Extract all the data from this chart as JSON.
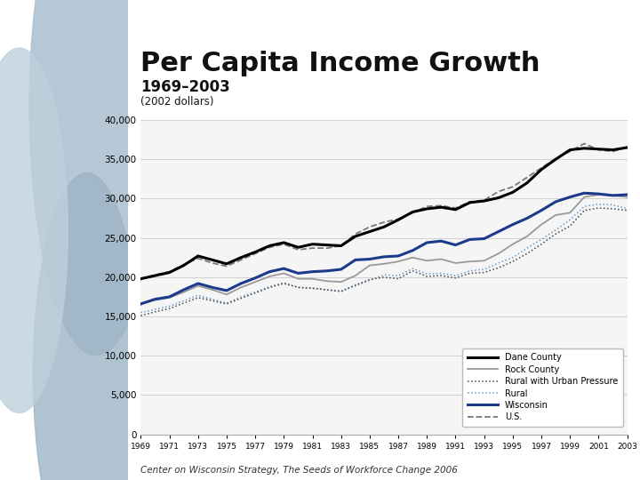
{
  "title": "Per Capita Income Growth",
  "subtitle": "1969–2003",
  "subtitle2": "(2002 dollars)",
  "footer": "Center on Wisconsin Strategy, The Seeds of Workforce Change 2006",
  "years": [
    1969,
    1970,
    1971,
    1972,
    1973,
    1974,
    1975,
    1976,
    1977,
    1978,
    1979,
    1980,
    1981,
    1982,
    1983,
    1984,
    1985,
    1986,
    1987,
    1988,
    1989,
    1990,
    1991,
    1992,
    1993,
    1994,
    1995,
    1996,
    1997,
    1998,
    1999,
    2000,
    2001,
    2002,
    2003
  ],
  "dane_county": [
    19800,
    20200,
    20600,
    21500,
    22700,
    22200,
    21700,
    22500,
    23200,
    24000,
    24400,
    23800,
    24200,
    24100,
    24000,
    25200,
    25800,
    26400,
    27300,
    28300,
    28700,
    28900,
    28600,
    29500,
    29700,
    30100,
    30800,
    32000,
    33700,
    35000,
    36200,
    36400,
    36300,
    36200,
    36500
  ],
  "rock_county": [
    16700,
    17100,
    17400,
    18100,
    18900,
    18400,
    17800,
    18700,
    19400,
    20100,
    20500,
    19800,
    19800,
    19500,
    19400,
    20200,
    21500,
    21700,
    22000,
    22500,
    22100,
    22300,
    21800,
    22000,
    22100,
    23000,
    24200,
    25200,
    26700,
    27900,
    28200,
    30200,
    30500,
    30400,
    30200
  ],
  "rural_urban": [
    15100,
    15600,
    16000,
    16700,
    17400,
    17000,
    16600,
    17300,
    18000,
    18700,
    19200,
    18700,
    18600,
    18400,
    18200,
    19000,
    19700,
    20000,
    19800,
    20800,
    20100,
    20200,
    19900,
    20500,
    20600,
    21200,
    22000,
    23000,
    24200,
    25500,
    26500,
    28500,
    28800,
    28700,
    28500
  ],
  "rural": [
    15500,
    15900,
    16300,
    17000,
    17700,
    17200,
    16700,
    17500,
    18100,
    18800,
    19300,
    18700,
    18600,
    18400,
    18200,
    18900,
    19600,
    20300,
    20200,
    21100,
    20400,
    20500,
    20200,
    20800,
    21000,
    21800,
    22500,
    23700,
    24800,
    26000,
    27300,
    29000,
    29300,
    29200,
    28700
  ],
  "wisconsin": [
    16600,
    17200,
    17500,
    18400,
    19200,
    18700,
    18300,
    19200,
    19900,
    20700,
    21100,
    20500,
    20700,
    20800,
    21000,
    22200,
    22300,
    22600,
    22700,
    23400,
    24400,
    24600,
    24100,
    24800,
    24900,
    25800,
    26700,
    27500,
    28500,
    29600,
    30200,
    30700,
    30600,
    30400,
    30500
  ],
  "us": [
    19800,
    20300,
    20700,
    21600,
    22400,
    21800,
    21400,
    22200,
    23000,
    23800,
    24200,
    23500,
    23700,
    23700,
    24000,
    25500,
    26400,
    27000,
    27400,
    28200,
    29000,
    29100,
    28800,
    29600,
    29800,
    30900,
    31500,
    32700,
    33900,
    35100,
    36000,
    37000,
    36200,
    36000,
    36600
  ],
  "background_color": "#ffffff",
  "chart_bg": "#f5f5f5",
  "header_bar_color": "#111111",
  "left_bg_color": "#c8d4de",
  "ylim": [
    0,
    40000
  ],
  "yticks": [
    0,
    5000,
    10000,
    15000,
    20000,
    25000,
    30000,
    35000,
    40000
  ]
}
